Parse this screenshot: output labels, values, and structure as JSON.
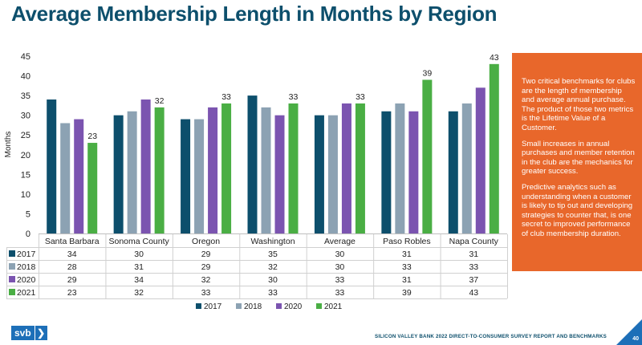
{
  "title": "Average Membership Length in Months by Region",
  "chart_data": {
    "type": "bar",
    "categories": [
      "Santa Barbara",
      "Sonoma County",
      "Oregon",
      "Washington",
      "Average",
      "Paso Robles",
      "Napa County"
    ],
    "series": [
      {
        "name": "2017",
        "color": "#0d4f6c",
        "values": [
          34,
          30,
          29,
          35,
          30,
          31,
          31
        ]
      },
      {
        "name": "2018",
        "color": "#8ca2b3",
        "values": [
          28,
          31,
          29,
          32,
          30,
          33,
          33
        ]
      },
      {
        "name": "2020",
        "color": "#7b54b0",
        "values": [
          29,
          34,
          32,
          30,
          33,
          31,
          37
        ]
      },
      {
        "name": "2021",
        "color": "#4aae44",
        "values": [
          23,
          32,
          33,
          33,
          33,
          39,
          43
        ]
      }
    ],
    "data_labels": [
      23,
      32,
      33,
      33,
      33,
      39,
      43
    ],
    "ylabel": "Months",
    "ylim": [
      0,
      45
    ],
    "yticks": [
      0,
      5,
      10,
      15,
      20,
      25,
      30,
      35,
      40,
      45
    ],
    "legend_position": "bottom",
    "grid": false
  },
  "sidebar": {
    "paragraphs": [
      "Two critical benchmarks for clubs are the length of membership and average annual purchase. The product of those two metrics is the Lifetime Value of a Customer.",
      "Small increases in annual purchases and member retention in the club are the mechanics for greater success.",
      "Predictive analytics such as understanding when a customer is likely to tip out and developing strategies to counter that, is one secret to improved performance of club membership duration."
    ]
  },
  "footer": {
    "logo_text": "svb",
    "logo_chevron": "❯",
    "report_title": "SILICON VALLEY BANK 2022 DIRECT-TO-CONSUMER SURVEY REPORT AND BENCHMARKS",
    "page_number": "40"
  }
}
